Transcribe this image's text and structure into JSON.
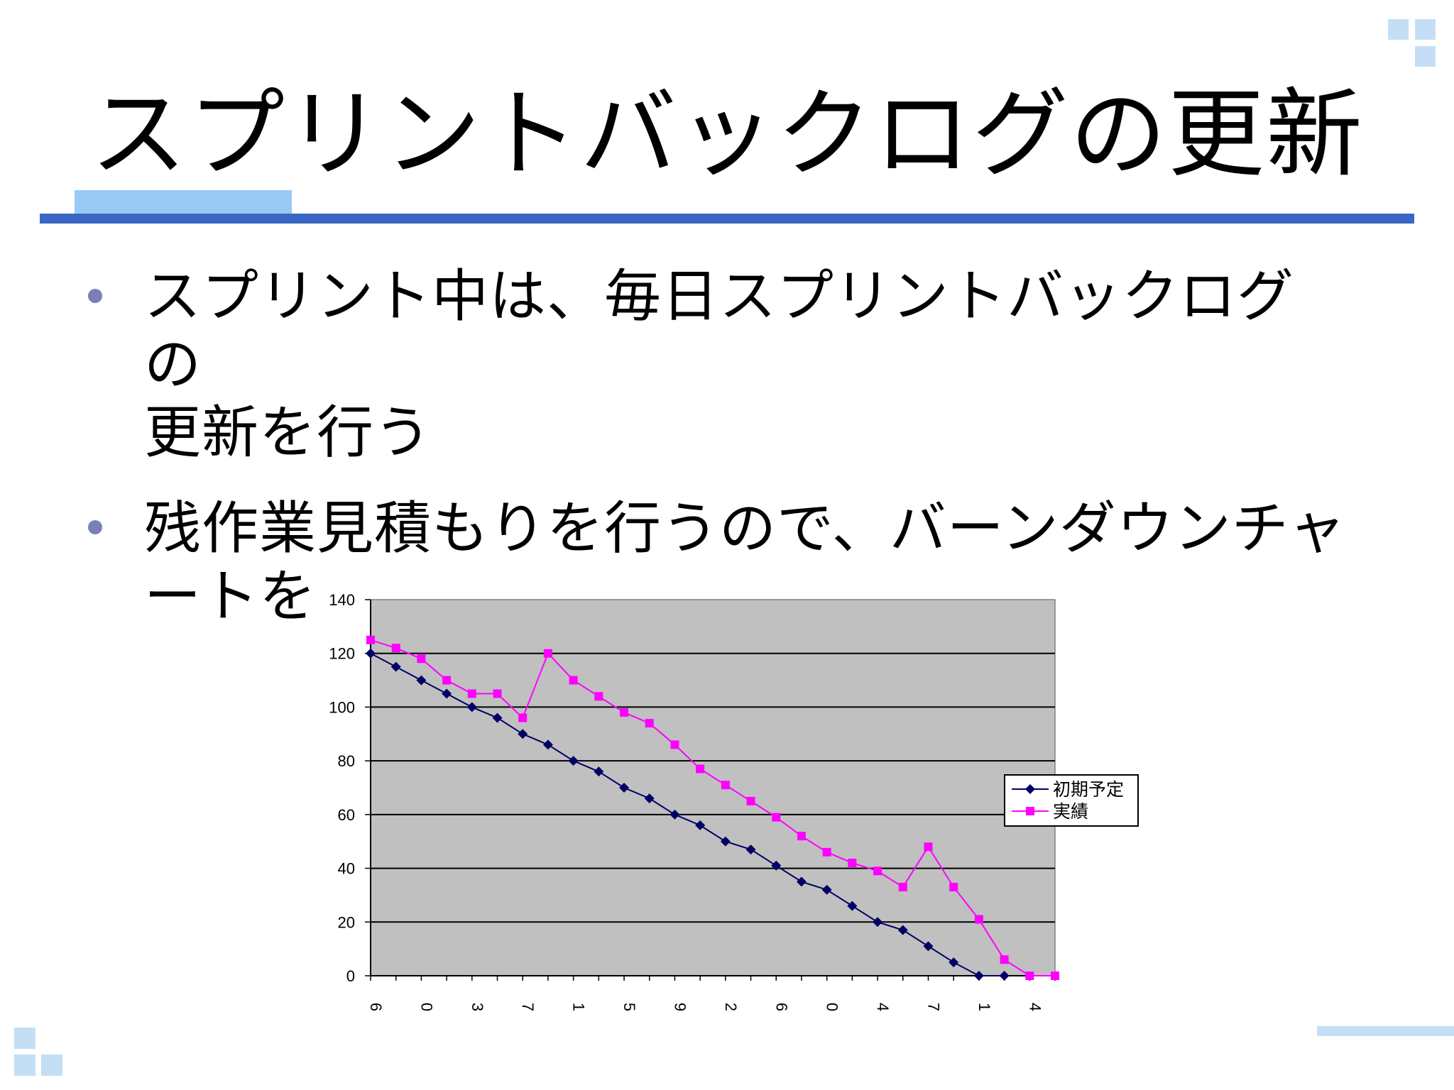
{
  "slide": {
    "title": "スプリントバックログの更新",
    "bullets": [
      {
        "line1": "スプリント中は、毎日スプリントバックログの",
        "line2": "更新を行う"
      },
      {
        "line1": "残作業見積もりを行うので、バーンダウンチャ",
        "line2": "ートを"
      }
    ]
  },
  "colors": {
    "title_rule": "#3a67c6",
    "title_accent": "#99c9f5",
    "decor_squares": "#c4dff5",
    "bullet": "#7b7fb8",
    "plot_area": "#c0c0c0",
    "series_planned": "#000066",
    "series_actual": "#ff00ff"
  },
  "chart_data": {
    "type": "line",
    "x": [
      "6",
      "",
      "0",
      "",
      "3",
      "",
      "7",
      "",
      "1",
      "",
      "5",
      "",
      "9",
      "",
      "2",
      "",
      "6",
      "",
      "0",
      "",
      "4",
      "",
      "7",
      "",
      "1",
      "",
      "4",
      ""
    ],
    "ylim": [
      0,
      140
    ],
    "yticks": [
      0,
      20,
      40,
      60,
      80,
      100,
      120,
      140
    ],
    "grid": true,
    "legend": "right",
    "series": [
      {
        "name": "初期予定",
        "marker": "diamond",
        "color": "#000066",
        "values": [
          120,
          115,
          110,
          105,
          100,
          96,
          90,
          86,
          80,
          76,
          70,
          66,
          60,
          56,
          50,
          47,
          41,
          35,
          32,
          26,
          20,
          17,
          11,
          5,
          0,
          0,
          null,
          null
        ]
      },
      {
        "name": "実績",
        "marker": "square",
        "color": "#ff00ff",
        "values": [
          125,
          122,
          118,
          110,
          105,
          105,
          96,
          120,
          110,
          104,
          98,
          94,
          86,
          77,
          71,
          65,
          59,
          52,
          46,
          42,
          39,
          33,
          48,
          33,
          21,
          6,
          0,
          0
        ]
      }
    ]
  }
}
